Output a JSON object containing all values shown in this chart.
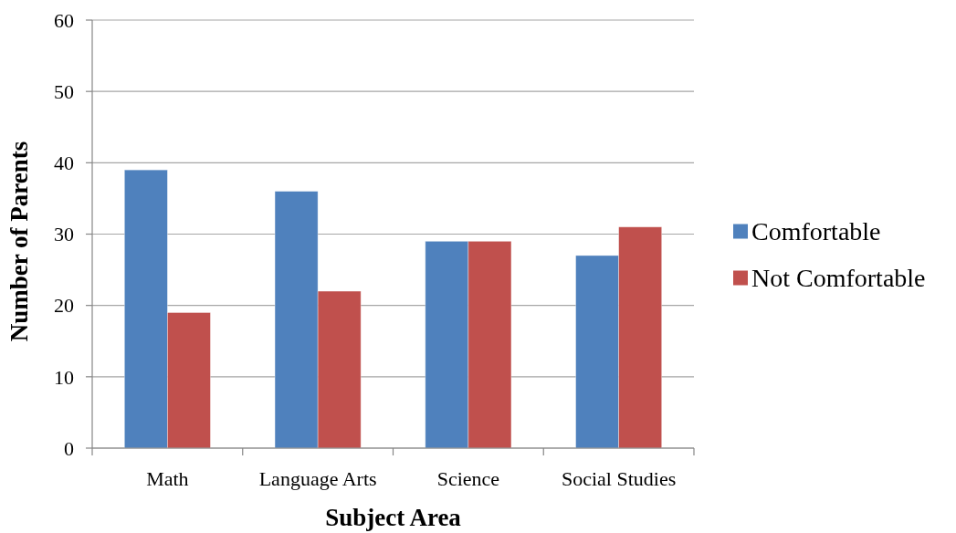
{
  "chart_data": {
    "type": "bar",
    "categories": [
      "Math",
      "Language Arts",
      "Science",
      "Social Studies"
    ],
    "series": [
      {
        "name": "Comfortable",
        "color": "#4f81bd",
        "values": [
          39,
          36,
          29,
          27
        ]
      },
      {
        "name": "Not Comfortable",
        "color": "#c0504d",
        "values": [
          19,
          22,
          29,
          31
        ]
      }
    ],
    "xlabel": "Subject Area",
    "ylabel": "Number of Parents",
    "ylim": [
      0,
      60
    ],
    "yticks": [
      0,
      10,
      20,
      30,
      40,
      50,
      60
    ],
    "grid": "y",
    "legend": "right"
  }
}
